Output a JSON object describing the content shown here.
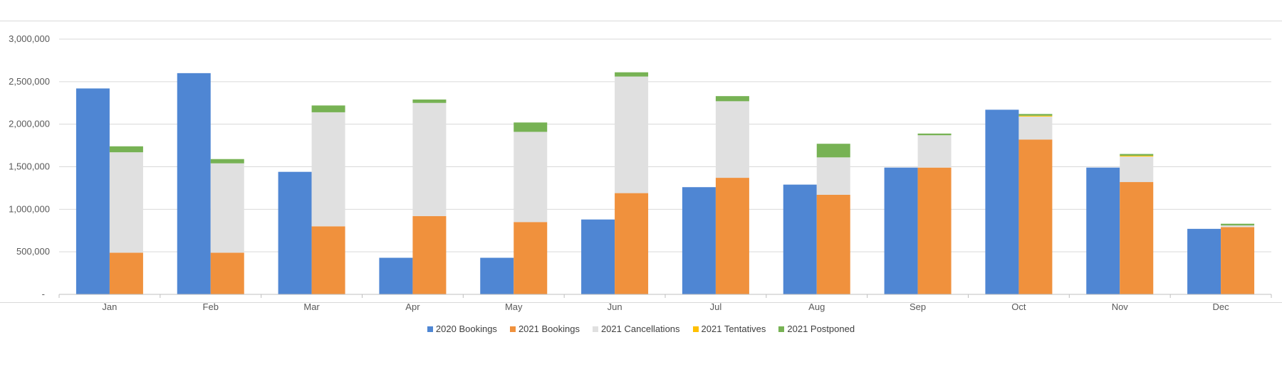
{
  "chart_data": {
    "type": "bar",
    "subtype": "clustered-with-stacked",
    "categories": [
      "Jan",
      "Feb",
      "Mar",
      "Apr",
      "May",
      "Jun",
      "Jul",
      "Aug",
      "Sep",
      "Oct",
      "Nov",
      "Dec"
    ],
    "y_tick_labels": [
      "-",
      "500,000",
      "1,000,000",
      "1,500,000",
      "2,000,000",
      "2,500,000",
      "3,000,000"
    ],
    "ylim": [
      0,
      3000000
    ],
    "grid": true,
    "legend_position": "bottom",
    "series": [
      {
        "name": "2020 Bookings",
        "color": "#4f86d3",
        "stack": "2020",
        "values": [
          2420000,
          2600000,
          1440000,
          430000,
          430000,
          880000,
          1260000,
          1290000,
          1490000,
          2170000,
          1490000,
          770000
        ]
      },
      {
        "name": "2021 Bookings",
        "color": "#f0913d",
        "stack": "2021",
        "values": [
          490000,
          490000,
          800000,
          920000,
          850000,
          1190000,
          1370000,
          1170000,
          1490000,
          1820000,
          1320000,
          790000
        ]
      },
      {
        "name": "2021 Cancellations",
        "color": "#e0e0e0",
        "stack": "2021",
        "values": [
          1180000,
          1050000,
          1340000,
          1330000,
          1060000,
          1370000,
          900000,
          440000,
          380000,
          270000,
          300000,
          20000
        ]
      },
      {
        "name": "2021 Tentatives",
        "color": "#ffc000",
        "stack": "2021",
        "values": [
          0,
          0,
          0,
          0,
          0,
          0,
          0,
          0,
          0,
          10000,
          10000,
          0
        ]
      },
      {
        "name": "2021 Postponed",
        "color": "#77b254",
        "stack": "2021",
        "values": [
          70000,
          50000,
          80000,
          40000,
          110000,
          50000,
          60000,
          160000,
          20000,
          20000,
          20000,
          20000
        ]
      }
    ]
  }
}
